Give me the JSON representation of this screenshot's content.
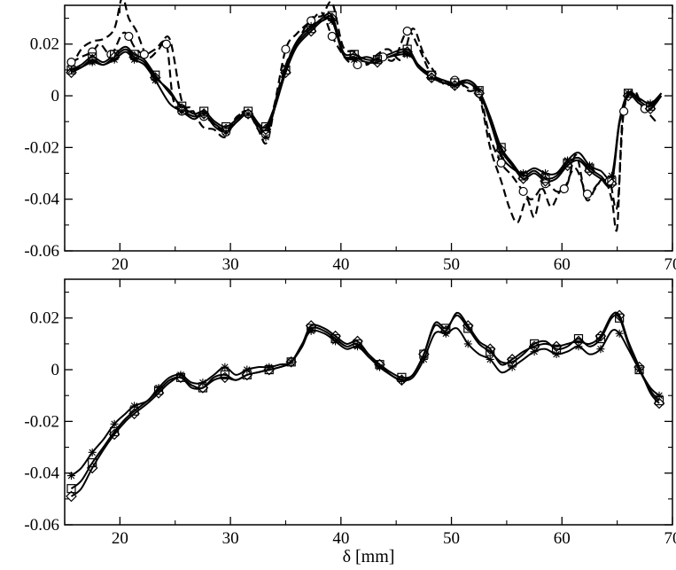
{
  "chart_data": [
    {
      "type": "line",
      "xlim": [
        15,
        70
      ],
      "ylim": [
        -0.06,
        0.035
      ],
      "xticks": [
        20,
        30,
        40,
        50,
        60,
        70
      ],
      "yticks": [
        -0.06,
        -0.04,
        -0.02,
        0,
        0.02
      ],
      "xtick_labels": [
        "20",
        "30",
        "40",
        "50",
        "60",
        "70"
      ],
      "ytick_labels": [
        "-0.06",
        "-0.04",
        "-0.02",
        "0",
        "0.02"
      ],
      "xlabel": "",
      "grid": false,
      "series": [
        {
          "style": "dashed",
          "marker": "circle",
          "x": [
            15.6,
            16.5,
            17.5,
            18.2,
            19.2,
            20.2,
            20.8,
            21.3,
            22.2,
            23.2,
            24.2,
            24.8,
            25.6,
            26.7,
            27.6,
            28.6,
            29.6,
            30.6,
            31.6,
            32.6,
            33.2,
            34.0,
            35.0,
            36.0,
            37.3,
            38.3,
            39.2,
            40.5,
            41.5,
            42.8,
            43.8,
            44.8,
            46.0,
            47.0,
            48.2,
            49.3,
            50.3,
            51.5,
            52.5,
            53.5,
            54.5,
            55.5,
            56.5,
            57.3,
            58.5,
            59.5,
            60.2,
            61.2,
            62.3,
            63.3,
            64.3,
            65.0,
            65.6,
            66.5,
            67.5,
            68.5
          ],
          "y": [
            0.013,
            0.015,
            0.017,
            0.02,
            0.016,
            0.024,
            0.023,
            0.019,
            0.016,
            0.018,
            0.02,
            -0.001,
            -0.006,
            -0.006,
            -0.008,
            -0.011,
            -0.014,
            -0.008,
            -0.007,
            -0.013,
            -0.015,
            -0.003,
            0.018,
            0.024,
            0.029,
            0.032,
            0.023,
            0.014,
            0.012,
            0.013,
            0.015,
            0.014,
            0.025,
            0.019,
            0.008,
            0.005,
            0.006,
            0.003,
            0.001,
            -0.016,
            -0.026,
            -0.031,
            -0.037,
            -0.04,
            -0.034,
            -0.037,
            -0.036,
            -0.028,
            -0.038,
            -0.034,
            -0.033,
            -0.043,
            -0.006,
            0.001,
            -0.005,
            -0.01
          ]
        },
        {
          "style": "solid",
          "marker": "square",
          "x": [
            15.6,
            16.5,
            17.5,
            18.5,
            19.5,
            20.5,
            21.3,
            22.2,
            23.2,
            24.5,
            25.6,
            26.7,
            27.6,
            28.6,
            29.6,
            30.6,
            31.6,
            32.6,
            33.2,
            34.0,
            35.0,
            36.0,
            37.3,
            38.3,
            39.2,
            40.2,
            41.2,
            42.3,
            43.3,
            44.3,
            46.0,
            47.0,
            48.2,
            49.3,
            50.3,
            51.5,
            52.5,
            53.5,
            54.5,
            55.5,
            56.5,
            57.5,
            58.5,
            59.5,
            60.5,
            61.5,
            62.5,
            63.5,
            64.5,
            65.2,
            66.0,
            67.0,
            68.0,
            69.0
          ],
          "y": [
            0.01,
            0.012,
            0.015,
            0.013,
            0.016,
            0.019,
            0.016,
            0.014,
            0.008,
            0.001,
            -0.004,
            -0.007,
            -0.006,
            -0.01,
            -0.012,
            -0.009,
            -0.006,
            -0.011,
            -0.012,
            -0.004,
            0.01,
            0.02,
            0.026,
            0.03,
            0.031,
            0.017,
            0.016,
            0.014,
            0.014,
            0.016,
            0.018,
            0.012,
            0.008,
            0.006,
            0.005,
            0.006,
            0.002,
            -0.008,
            -0.02,
            -0.026,
            -0.031,
            -0.029,
            -0.032,
            -0.031,
            -0.026,
            -0.024,
            -0.028,
            -0.031,
            -0.033,
            -0.01,
            0.001,
            -0.002,
            -0.004,
            0.001
          ]
        },
        {
          "style": "solid",
          "marker": "diamond",
          "x": [
            15.6,
            16.5,
            17.5,
            18.5,
            19.5,
            20.5,
            21.3,
            22.2,
            23.2,
            24.5,
            25.6,
            26.7,
            27.6,
            28.6,
            29.6,
            30.6,
            31.6,
            32.6,
            33.2,
            34.0,
            35.0,
            36.0,
            37.3,
            38.3,
            39.2,
            40.2,
            41.2,
            42.3,
            43.3,
            44.3,
            46.0,
            47.0,
            48.2,
            49.3,
            50.3,
            51.5,
            52.5,
            53.5,
            54.5,
            55.5,
            56.5,
            57.5,
            58.5,
            59.5,
            60.5,
            61.5,
            62.5,
            63.5,
            64.5,
            65.2,
            66.0,
            67.0,
            68.0,
            69.0
          ],
          "y": [
            0.009,
            0.011,
            0.014,
            0.012,
            0.015,
            0.018,
            0.015,
            0.013,
            0.007,
            0.002,
            -0.005,
            -0.008,
            -0.007,
            -0.011,
            -0.013,
            -0.01,
            -0.007,
            -0.012,
            -0.013,
            -0.005,
            0.009,
            0.019,
            0.025,
            0.029,
            0.03,
            0.016,
            0.015,
            0.013,
            0.013,
            0.015,
            0.017,
            0.011,
            0.007,
            0.005,
            0.004,
            0.005,
            0.001,
            -0.009,
            -0.021,
            -0.027,
            -0.032,
            -0.03,
            -0.033,
            -0.032,
            -0.027,
            -0.025,
            -0.029,
            -0.032,
            -0.034,
            -0.011,
            0.0,
            -0.003,
            -0.005,
            0.0
          ]
        },
        {
          "style": "solid",
          "marker": "star",
          "x": [
            15.6,
            16.5,
            17.5,
            18.5,
            19.5,
            20.5,
            21.3,
            22.2,
            23.2,
            24.5,
            25.6,
            26.7,
            27.6,
            28.6,
            29.6,
            30.6,
            31.6,
            32.6,
            33.2,
            34.0,
            35.0,
            36.0,
            37.3,
            38.3,
            39.2,
            40.2,
            41.2,
            42.3,
            43.3,
            44.3,
            46.0,
            47.0,
            48.2,
            49.3,
            50.3,
            51.5,
            52.5,
            53.5,
            54.5,
            55.5,
            56.5,
            57.5,
            58.5,
            59.5,
            60.5,
            61.5,
            62.5,
            63.5,
            64.5,
            65.2,
            66.0,
            67.0,
            68.0,
            69.0
          ],
          "y": [
            0.01,
            0.011,
            0.013,
            0.012,
            0.014,
            0.017,
            0.014,
            0.012,
            0.006,
            -0.003,
            -0.006,
            -0.009,
            -0.007,
            -0.012,
            -0.014,
            -0.01,
            -0.007,
            -0.012,
            -0.016,
            -0.005,
            0.011,
            0.021,
            0.027,
            0.029,
            0.029,
            0.016,
            0.014,
            0.015,
            0.014,
            0.015,
            0.016,
            0.012,
            0.007,
            0.006,
            0.004,
            0.006,
            0.002,
            -0.01,
            -0.023,
            -0.028,
            -0.03,
            -0.028,
            -0.03,
            -0.03,
            -0.025,
            -0.022,
            -0.027,
            -0.029,
            -0.031,
            -0.01,
            0.001,
            -0.001,
            -0.003,
            0.001
          ]
        },
        {
          "style": "dashed",
          "marker": "none",
          "x": [
            15.6,
            16.5,
            17.5,
            18.5,
            19.5,
            20.2,
            20.8,
            21.5,
            22.5,
            23.5,
            24.5,
            25.6,
            26.5,
            27.5,
            28.5,
            29.5,
            30.5,
            31.5,
            32.5,
            33.3,
            34.2,
            35.2,
            36.2,
            37.3,
            38.3,
            39.2,
            40.2,
            41.3,
            42.3,
            43.3,
            44.3,
            45.5,
            46.5,
            47.5,
            48.5,
            49.5,
            50.5,
            51.5,
            52.5,
            53.5,
            54.5,
            55.3,
            56.0,
            56.8,
            57.5,
            58.2,
            59.0,
            59.8,
            60.5,
            61.3,
            62.2,
            63.0,
            63.8,
            64.5,
            65.0,
            65.5,
            66.5,
            67.5,
            68.5
          ],
          "y": [
            0.011,
            0.018,
            0.021,
            0.022,
            0.026,
            0.038,
            0.03,
            0.025,
            0.015,
            0.018,
            0.022,
            -0.002,
            -0.005,
            -0.012,
            -0.013,
            -0.016,
            -0.009,
            -0.006,
            -0.013,
            -0.018,
            0.0,
            0.014,
            0.022,
            0.03,
            0.031,
            0.036,
            0.019,
            0.017,
            0.012,
            0.016,
            0.018,
            0.014,
            0.026,
            0.016,
            0.009,
            0.004,
            0.006,
            0.002,
            0.0,
            -0.02,
            -0.033,
            -0.044,
            -0.049,
            -0.04,
            -0.047,
            -0.036,
            -0.043,
            -0.037,
            -0.034,
            -0.023,
            -0.04,
            -0.036,
            -0.032,
            -0.04,
            -0.051,
            -0.008,
            0.002,
            -0.006,
            -0.003
          ]
        }
      ]
    },
    {
      "type": "line",
      "xlim": [
        15,
        70
      ],
      "ylim": [
        -0.06,
        0.035
      ],
      "xticks": [
        20,
        30,
        40,
        50,
        60,
        70
      ],
      "yticks": [
        -0.06,
        -0.04,
        -0.02,
        0,
        0.02
      ],
      "xtick_labels": [
        "20",
        "30",
        "40",
        "50",
        "60",
        "70"
      ],
      "ytick_labels": [
        "-0.06",
        "-0.04",
        "-0.02",
        "0",
        "0.02"
      ],
      "xlabel": "δ [mm]",
      "grid": false,
      "series": [
        {
          "style": "solid",
          "marker": "square",
          "x": [
            15.6,
            16.5,
            17.5,
            18.5,
            19.5,
            20.5,
            21.3,
            22.5,
            23.5,
            24.5,
            25.5,
            26.5,
            27.5,
            28.5,
            29.5,
            30.5,
            31.5,
            32.5,
            33.5,
            34.5,
            35.5,
            36.5,
            37.3,
            38.5,
            39.5,
            40.5,
            41.5,
            42.5,
            43.5,
            44.5,
            45.5,
            46.5,
            47.5,
            48.5,
            49.5,
            50.5,
            51.5,
            52.5,
            53.5,
            54.5,
            55.5,
            56.5,
            57.5,
            58.5,
            59.5,
            60.5,
            61.5,
            62.5,
            63.5,
            64.5,
            65.2,
            66.0,
            67.0,
            68.0,
            68.8
          ],
          "y": [
            -0.046,
            -0.043,
            -0.036,
            -0.03,
            -0.024,
            -0.019,
            -0.016,
            -0.012,
            -0.008,
            -0.004,
            -0.003,
            -0.006,
            -0.007,
            -0.003,
            -0.002,
            -0.004,
            -0.002,
            -0.001,
            0.0,
            0.001,
            0.003,
            0.009,
            0.016,
            0.015,
            0.012,
            0.009,
            0.01,
            0.005,
            0.002,
            -0.001,
            -0.003,
            -0.002,
            0.006,
            0.018,
            0.016,
            0.021,
            0.016,
            0.01,
            0.007,
            0.003,
            0.003,
            0.006,
            0.01,
            0.011,
            0.008,
            0.009,
            0.012,
            0.009,
            0.012,
            0.02,
            0.02,
            0.01,
            0.0,
            -0.008,
            -0.012
          ]
        },
        {
          "style": "solid",
          "marker": "diamond",
          "x": [
            15.6,
            16.5,
            17.5,
            18.5,
            19.5,
            20.5,
            21.3,
            22.5,
            23.5,
            24.5,
            25.5,
            26.5,
            27.5,
            28.5,
            29.5,
            30.5,
            31.5,
            32.5,
            33.5,
            34.5,
            35.5,
            36.5,
            37.3,
            38.5,
            39.5,
            40.5,
            41.5,
            42.5,
            43.5,
            44.5,
            45.5,
            46.5,
            47.5,
            48.5,
            49.5,
            50.5,
            51.5,
            52.5,
            53.5,
            54.5,
            55.5,
            56.5,
            57.5,
            58.5,
            59.5,
            60.5,
            61.5,
            62.5,
            63.5,
            64.5,
            65.2,
            66.0,
            67.0,
            68.0,
            68.8
          ],
          "y": [
            -0.049,
            -0.046,
            -0.038,
            -0.031,
            -0.025,
            -0.02,
            -0.017,
            -0.013,
            -0.009,
            -0.005,
            -0.003,
            -0.007,
            -0.007,
            -0.004,
            -0.003,
            -0.004,
            -0.002,
            -0.001,
            0.0,
            0.001,
            0.003,
            0.01,
            0.017,
            0.016,
            0.013,
            0.01,
            0.011,
            0.006,
            0.002,
            -0.002,
            -0.004,
            -0.002,
            0.006,
            0.017,
            0.015,
            0.022,
            0.017,
            0.011,
            0.008,
            0.002,
            0.004,
            0.007,
            0.009,
            0.01,
            0.009,
            0.01,
            0.011,
            0.01,
            0.013,
            0.021,
            0.021,
            0.011,
            0.001,
            -0.009,
            -0.013
          ]
        },
        {
          "style": "solid",
          "marker": "star",
          "x": [
            15.6,
            16.5,
            17.5,
            18.5,
            19.5,
            20.5,
            21.3,
            22.5,
            23.5,
            24.5,
            25.5,
            26.5,
            27.5,
            28.5,
            29.5,
            30.5,
            31.5,
            32.5,
            33.5,
            34.5,
            35.5,
            36.5,
            37.3,
            38.5,
            39.5,
            40.5,
            41.5,
            42.5,
            43.5,
            44.5,
            45.5,
            46.5,
            47.5,
            48.5,
            49.5,
            50.5,
            51.5,
            52.5,
            53.5,
            54.5,
            55.5,
            56.5,
            57.5,
            58.5,
            59.5,
            60.5,
            61.5,
            62.5,
            63.5,
            64.5,
            65.2,
            66.0,
            67.0,
            68.0,
            68.8
          ],
          "y": [
            -0.041,
            -0.038,
            -0.032,
            -0.027,
            -0.021,
            -0.017,
            -0.014,
            -0.012,
            -0.007,
            -0.003,
            -0.002,
            -0.005,
            -0.005,
            -0.002,
            0.001,
            -0.002,
            0.0,
            0.001,
            0.001,
            0.002,
            0.003,
            0.01,
            0.015,
            0.014,
            0.011,
            0.008,
            0.009,
            0.005,
            0.001,
            -0.002,
            -0.004,
            -0.003,
            0.004,
            0.014,
            0.014,
            0.016,
            0.01,
            0.006,
            0.004,
            -0.001,
            0.001,
            0.004,
            0.007,
            0.008,
            0.006,
            0.007,
            0.009,
            0.006,
            0.008,
            0.015,
            0.014,
            0.008,
            0.0,
            -0.007,
            -0.01
          ]
        }
      ]
    }
  ]
}
